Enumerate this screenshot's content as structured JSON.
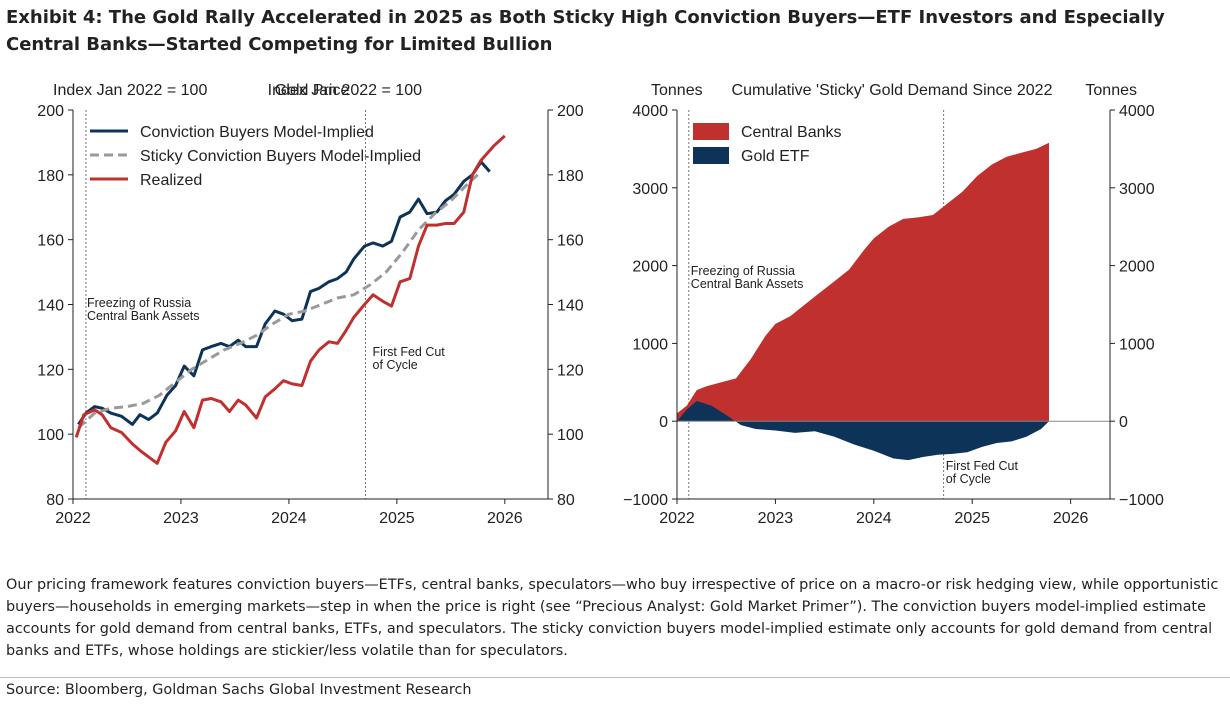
{
  "title": "Exhibit 4: The Gold Rally Accelerated in 2025 as Both Sticky High Conviction Buyers—ETF Investors and Especially Central Banks—Started Competing for Limited Bullion",
  "caption": "Our pricing framework features conviction buyers—ETFs, central banks, speculators—who buy irrespective of price on a macro-or risk hedging view, while opportunistic buyers—households in emerging markets—step in when the price is right (see “Precious Analyst: Gold Market Primer”). The conviction buyers model-implied estimate accounts for gold demand from central banks, ETFs, and speculators. The sticky conviction buyers model-implied estimate only accounts for gold demand from central banks and ETFs, whose holdings are stickier/less volatile than for speculators.",
  "source": "Source: Bloomberg, Goldman Sachs Global Investment Research",
  "colors": {
    "navy": "#0d3358",
    "red": "#c0302f",
    "gray": "#9a9a9a"
  },
  "chart_data": [
    {
      "type": "line",
      "title": "Gold Price",
      "ylabel_left": "Index Jan 2022 = 100",
      "ylabel_right": "Index Jan 2022 = 100",
      "xlim": [
        2022,
        2026.4
      ],
      "ylim": [
        80,
        200
      ],
      "xticks": [
        "2022",
        "2023",
        "2024",
        "2025",
        "2026"
      ],
      "yticks": [
        "80",
        "100",
        "120",
        "140",
        "160",
        "180",
        "200"
      ],
      "legend_position": "top-left",
      "vlines": [
        {
          "x": 2022.12,
          "label_lines": [
            "Freezing of Russia",
            "Central Bank Assets"
          ]
        },
        {
          "x": 2024.71,
          "label_lines": [
            "First Fed Cut",
            "of Cycle"
          ]
        }
      ],
      "series": [
        {
          "name": "Conviction Buyers Model-Implied",
          "color_key": "navy",
          "dash": false,
          "x": [
            2022.05,
            2022.12,
            2022.2,
            2022.27,
            2022.35,
            2022.45,
            2022.55,
            2022.62,
            2022.7,
            2022.78,
            2022.87,
            2022.95,
            2023.03,
            2023.12,
            2023.2,
            2023.28,
            2023.37,
            2023.45,
            2023.53,
            2023.6,
            2023.7,
            2023.78,
            2023.87,
            2023.95,
            2024.03,
            2024.12,
            2024.2,
            2024.28,
            2024.37,
            2024.45,
            2024.53,
            2024.6,
            2024.7,
            2024.78,
            2024.87,
            2024.95,
            2025.03,
            2025.12,
            2025.2,
            2025.28,
            2025.37,
            2025.45,
            2025.53,
            2025.62,
            2025.7,
            2025.78,
            2025.86
          ],
          "y": [
            103,
            106.5,
            108.5,
            108,
            106.5,
            105.5,
            103,
            106,
            104.5,
            106.5,
            112,
            115,
            121,
            118,
            126,
            127,
            128,
            127,
            129,
            127,
            127,
            134,
            138,
            137,
            135,
            135.5,
            144,
            145,
            147,
            148,
            150,
            154,
            158,
            159,
            158,
            159.5,
            167,
            168.5,
            172.5,
            168,
            168.5,
            172,
            174,
            178,
            180,
            184,
            181
          ]
        },
        {
          "name": "Sticky Conviction Buyers Model-Implied",
          "color_key": "gray",
          "dash": true,
          "x": [
            2022.05,
            2022.2,
            2022.35,
            2022.5,
            2022.65,
            2022.8,
            2022.95,
            2023.1,
            2023.25,
            2023.4,
            2023.55,
            2023.7,
            2023.85,
            2024.0,
            2024.15,
            2024.3,
            2024.45,
            2024.6,
            2024.75,
            2024.9,
            2025.05,
            2025.2,
            2025.35,
            2025.5,
            2025.65,
            2025.78
          ],
          "y": [
            102,
            106.5,
            108,
            108.5,
            109.5,
            112,
            116,
            120,
            123,
            126,
            128,
            130.5,
            134,
            137,
            138,
            140,
            142,
            143,
            146,
            150,
            156,
            163,
            168,
            172,
            177,
            181
          ]
        },
        {
          "name": "Realized",
          "color_key": "red",
          "dash": false,
          "x": [
            2022.03,
            2022.1,
            2022.2,
            2022.27,
            2022.35,
            2022.45,
            2022.55,
            2022.62,
            2022.7,
            2022.78,
            2022.86,
            2022.95,
            2023.03,
            2023.12,
            2023.2,
            2023.28,
            2023.37,
            2023.45,
            2023.53,
            2023.6,
            2023.7,
            2023.78,
            2023.87,
            2023.95,
            2024.03,
            2024.12,
            2024.2,
            2024.28,
            2024.37,
            2024.45,
            2024.53,
            2024.6,
            2024.7,
            2024.78,
            2024.87,
            2024.95,
            2025.03,
            2025.12,
            2025.2,
            2025.28,
            2025.37,
            2025.45,
            2025.53,
            2025.62,
            2025.7,
            2025.78,
            2025.9,
            2026.0
          ],
          "y": [
            99,
            106,
            107.5,
            106,
            102,
            100.5,
            97,
            95,
            93,
            91,
            97.5,
            101,
            107,
            102,
            110.5,
            111,
            110,
            107,
            110.5,
            109,
            105,
            111.5,
            114,
            116.5,
            115.5,
            115,
            122.5,
            126,
            128.5,
            128,
            132,
            136,
            140,
            143,
            141,
            139.5,
            147,
            148,
            158,
            164.5,
            164.5,
            165,
            165,
            168.5,
            180,
            184.5,
            189,
            192
          ]
        }
      ]
    },
    {
      "type": "area",
      "title": "Cumulative 'Sticky' Gold Demand Since 2022",
      "ylabel_left": "Tonnes",
      "ylabel_right": "Tonnes",
      "xlim": [
        2022,
        2026.4
      ],
      "ylim": [
        -1000,
        4000
      ],
      "xticks": [
        "2022",
        "2023",
        "2024",
        "2025",
        "2026"
      ],
      "yticks": [
        "−1000",
        "0",
        "1000",
        "2000",
        "3000",
        "4000"
      ],
      "legend_position": "top-left",
      "vlines": [
        {
          "x": 2022.12,
          "label_lines": [
            "Freezing of Russia",
            "Central Bank Assets"
          ]
        },
        {
          "x": 2024.71,
          "label_lines": [
            "First Fed Cut",
            "of Cycle"
          ]
        }
      ],
      "series": [
        {
          "name": "Central Banks",
          "color_key": "red",
          "x": [
            2022.0,
            2022.1,
            2022.2,
            2022.3,
            2022.45,
            2022.6,
            2022.75,
            2022.9,
            2023.0,
            2023.15,
            2023.3,
            2023.45,
            2023.6,
            2023.75,
            2023.9,
            2024.0,
            2024.15,
            2024.3,
            2024.45,
            2024.6,
            2024.75,
            2024.9,
            2025.05,
            2025.2,
            2025.35,
            2025.5,
            2025.65,
            2025.78
          ],
          "y": [
            100,
            200,
            400,
            450,
            500,
            550,
            800,
            1100,
            1250,
            1350,
            1500,
            1650,
            1800,
            1950,
            2200,
            2350,
            2500,
            2600,
            2620,
            2650,
            2800,
            2950,
            3150,
            3300,
            3400,
            3450,
            3500,
            3580
          ]
        },
        {
          "name": "Gold ETF",
          "color_key": "navy",
          "x": [
            2022.0,
            2022.1,
            2022.2,
            2022.35,
            2022.5,
            2022.65,
            2022.8,
            2023.0,
            2023.2,
            2023.4,
            2023.6,
            2023.8,
            2024.0,
            2024.2,
            2024.35,
            2024.5,
            2024.65,
            2024.8,
            2024.95,
            2025.1,
            2025.25,
            2025.4,
            2025.55,
            2025.7,
            2025.78
          ],
          "y": [
            0,
            150,
            260,
            200,
            80,
            -50,
            -100,
            -120,
            -150,
            -130,
            -200,
            -300,
            -380,
            -480,
            -500,
            -460,
            -430,
            -420,
            -400,
            -330,
            -280,
            -260,
            -200,
            -100,
            0
          ]
        }
      ]
    }
  ]
}
